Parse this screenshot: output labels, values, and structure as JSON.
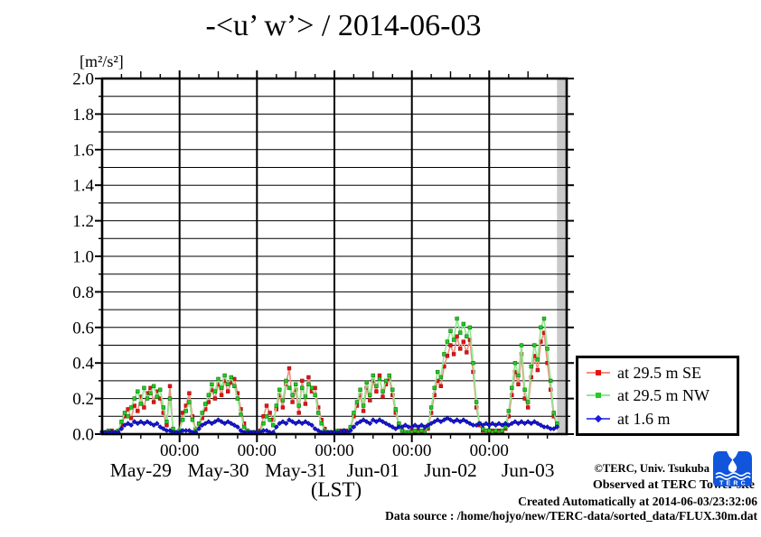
{
  "title": "-<u’ w’> / 2014-06-03",
  "y_unit": "[m²/s²]",
  "x_axis_label": "(LST)",
  "legend": {
    "items": [
      {
        "label": "at 29.5 m SE",
        "marker_color": "#e81212",
        "line_color": "#f09080"
      },
      {
        "label": "at 29.5 m NW",
        "marker_color": "#22cc22",
        "line_color": "#90e890"
      },
      {
        "label": "at 1.6 m",
        "marker_color": "#1a1ae0",
        "line_color": "#5055e8"
      }
    ]
  },
  "footer": {
    "copyright": "©TERC, Univ. Tsukuba",
    "observed": "Observed at TERC Tower site",
    "created": "Created Automatically at 2014-06-03/23:32:06",
    "datasource": "Data source : /home/hojyo/new/TERC-data/sorted_data/FLUX.30m.dat",
    "logo_text": "TERC",
    "logo_color": "#1155dd"
  },
  "chart_data": {
    "type": "line",
    "title": "-<u’ w’> / 2014-06-03",
    "ylabel": "[m²/s²]",
    "xlabel": "(LST)",
    "ylim": [
      0.0,
      2.0
    ],
    "y_major_step": 0.2,
    "y_minor_step": 0.1,
    "grid": "horizontal every 0.1, vertical at each midnight",
    "y_ticks": [
      "0.0",
      "0.2",
      "0.4",
      "0.6",
      "0.8",
      "1.0",
      "1.2",
      "1.4",
      "1.6",
      "1.8",
      "2.0"
    ],
    "hours_total": 144,
    "midnight_label": "00:00",
    "midnight_hours": [
      24,
      48,
      72,
      96,
      120
    ],
    "day_labels": [
      "May-29",
      "May-30",
      "May-31",
      "Jun-01",
      "Jun-02",
      "Jun-03"
    ],
    "day_center_hours": [
      12,
      36,
      60,
      84,
      108,
      132
    ],
    "legend_position": "right-bottom-outside",
    "no_data_band": {
      "from_hour": 141,
      "to_hour": 144,
      "color": "#c9c9c9"
    },
    "series": [
      {
        "name": "at 29.5 m SE",
        "marker_color": "#e81212",
        "edge_color": "#991010",
        "line_color": "#f09080",
        "marker": "square",
        "start_hour": 0,
        "step_hours": 1,
        "values": [
          0.01,
          0.01,
          0.01,
          0.02,
          0.01,
          0.01,
          0.05,
          0.1,
          0.14,
          0.09,
          0.16,
          0.13,
          0.21,
          0.15,
          0.23,
          0.26,
          0.18,
          0.24,
          0.2,
          0.12,
          0.05,
          0.27,
          0.02,
          0.01,
          0.02,
          0.12,
          0.16,
          0.23,
          0.1,
          0.03,
          0.05,
          0.09,
          0.14,
          0.18,
          0.25,
          0.2,
          0.28,
          0.22,
          0.3,
          0.24,
          0.29,
          0.31,
          0.23,
          0.14,
          0.06,
          0.02,
          0.01,
          0.01,
          0.01,
          0.02,
          0.1,
          0.16,
          0.12,
          0.08,
          0.14,
          0.22,
          0.15,
          0.28,
          0.37,
          0.18,
          0.25,
          0.12,
          0.3,
          0.17,
          0.32,
          0.24,
          0.26,
          0.15,
          0.08,
          0.03,
          0.01,
          0.01,
          0.01,
          0.01,
          0.02,
          0.01,
          0.02,
          0.03,
          0.1,
          0.16,
          0.22,
          0.13,
          0.26,
          0.19,
          0.3,
          0.24,
          0.33,
          0.21,
          0.28,
          0.31,
          0.22,
          0.12,
          0.05,
          0.02,
          0.01,
          0.01,
          0.02,
          0.01,
          0.02,
          0.01,
          0.02,
          0.03,
          0.12,
          0.22,
          0.3,
          0.27,
          0.38,
          0.44,
          0.5,
          0.45,
          0.55,
          0.48,
          0.52,
          0.46,
          0.53,
          0.35,
          0.15,
          0.05,
          0.02,
          0.02,
          0.01,
          0.02,
          0.01,
          0.02,
          0.01,
          0.03,
          0.1,
          0.22,
          0.35,
          0.28,
          0.45,
          0.2,
          0.15,
          0.32,
          0.44,
          0.36,
          0.52,
          0.57,
          0.4,
          0.25,
          0.1,
          0.05
        ]
      },
      {
        "name": "at 29.5 m NW",
        "marker_color": "#22cc22",
        "edge_color": "#117711",
        "line_color": "#90e890",
        "marker": "square",
        "start_hour": 0,
        "step_hours": 1,
        "values": [
          0.01,
          0.01,
          0.02,
          0.01,
          0.01,
          0.02,
          0.07,
          0.12,
          0.1,
          0.15,
          0.2,
          0.24,
          0.17,
          0.26,
          0.2,
          0.23,
          0.27,
          0.21,
          0.25,
          0.15,
          0.07,
          0.2,
          0.03,
          0.01,
          0.02,
          0.08,
          0.13,
          0.18,
          0.08,
          0.02,
          0.06,
          0.12,
          0.17,
          0.22,
          0.28,
          0.24,
          0.31,
          0.26,
          0.33,
          0.28,
          0.32,
          0.27,
          0.2,
          0.11,
          0.04,
          0.02,
          0.01,
          0.01,
          0.01,
          0.01,
          0.06,
          0.1,
          0.08,
          0.05,
          0.16,
          0.25,
          0.19,
          0.3,
          0.26,
          0.22,
          0.28,
          0.16,
          0.26,
          0.21,
          0.28,
          0.26,
          0.22,
          0.12,
          0.06,
          0.02,
          0.01,
          0.01,
          0.01,
          0.02,
          0.01,
          0.02,
          0.01,
          0.04,
          0.12,
          0.18,
          0.25,
          0.16,
          0.29,
          0.22,
          0.33,
          0.27,
          0.31,
          0.24,
          0.3,
          0.33,
          0.25,
          0.14,
          0.06,
          0.02,
          0.01,
          0.01,
          0.01,
          0.02,
          0.01,
          0.02,
          0.01,
          0.04,
          0.15,
          0.26,
          0.35,
          0.32,
          0.45,
          0.52,
          0.58,
          0.53,
          0.65,
          0.57,
          0.62,
          0.55,
          0.6,
          0.4,
          0.18,
          0.06,
          0.03,
          0.02,
          0.02,
          0.01,
          0.02,
          0.01,
          0.02,
          0.04,
          0.13,
          0.26,
          0.4,
          0.33,
          0.5,
          0.25,
          0.18,
          0.38,
          0.5,
          0.42,
          0.6,
          0.65,
          0.48,
          0.3,
          0.12,
          0.06
        ]
      },
      {
        "name": "at 1.6 m",
        "marker_color": "#1a1ae0",
        "edge_color": "#000088",
        "line_color": "#5055e8",
        "marker": "diamond",
        "start_hour": 0,
        "step_hours": 1,
        "values": [
          0.01,
          0.01,
          0.01,
          0.01,
          0.01,
          0.01,
          0.03,
          0.05,
          0.06,
          0.05,
          0.07,
          0.06,
          0.07,
          0.06,
          0.07,
          0.06,
          0.05,
          0.06,
          0.04,
          0.03,
          0.02,
          0.02,
          0.01,
          0.01,
          0.01,
          0.02,
          0.02,
          0.02,
          0.01,
          0.01,
          0.03,
          0.05,
          0.06,
          0.07,
          0.06,
          0.07,
          0.08,
          0.07,
          0.06,
          0.07,
          0.06,
          0.05,
          0.04,
          0.02,
          0.01,
          0.01,
          0.01,
          0.01,
          0.01,
          0.01,
          0.02,
          0.02,
          0.01,
          0.01,
          0.04,
          0.06,
          0.07,
          0.06,
          0.08,
          0.07,
          0.06,
          0.07,
          0.06,
          0.07,
          0.06,
          0.05,
          0.03,
          0.02,
          0.01,
          0.01,
          0.01,
          0.01,
          0.01,
          0.01,
          0.01,
          0.02,
          0.01,
          0.02,
          0.04,
          0.06,
          0.07,
          0.08,
          0.07,
          0.06,
          0.08,
          0.07,
          0.08,
          0.07,
          0.06,
          0.05,
          0.04,
          0.03,
          0.04,
          0.04,
          0.05,
          0.04,
          0.04,
          0.05,
          0.04,
          0.05,
          0.04,
          0.05,
          0.06,
          0.07,
          0.08,
          0.07,
          0.08,
          0.09,
          0.08,
          0.07,
          0.08,
          0.07,
          0.08,
          0.07,
          0.06,
          0.05,
          0.05,
          0.06,
          0.05,
          0.06,
          0.05,
          0.06,
          0.05,
          0.06,
          0.05,
          0.06,
          0.05,
          0.06,
          0.07,
          0.06,
          0.07,
          0.06,
          0.07,
          0.06,
          0.07,
          0.06,
          0.05,
          0.04,
          0.04,
          0.03,
          0.03,
          0.04
        ]
      }
    ]
  }
}
